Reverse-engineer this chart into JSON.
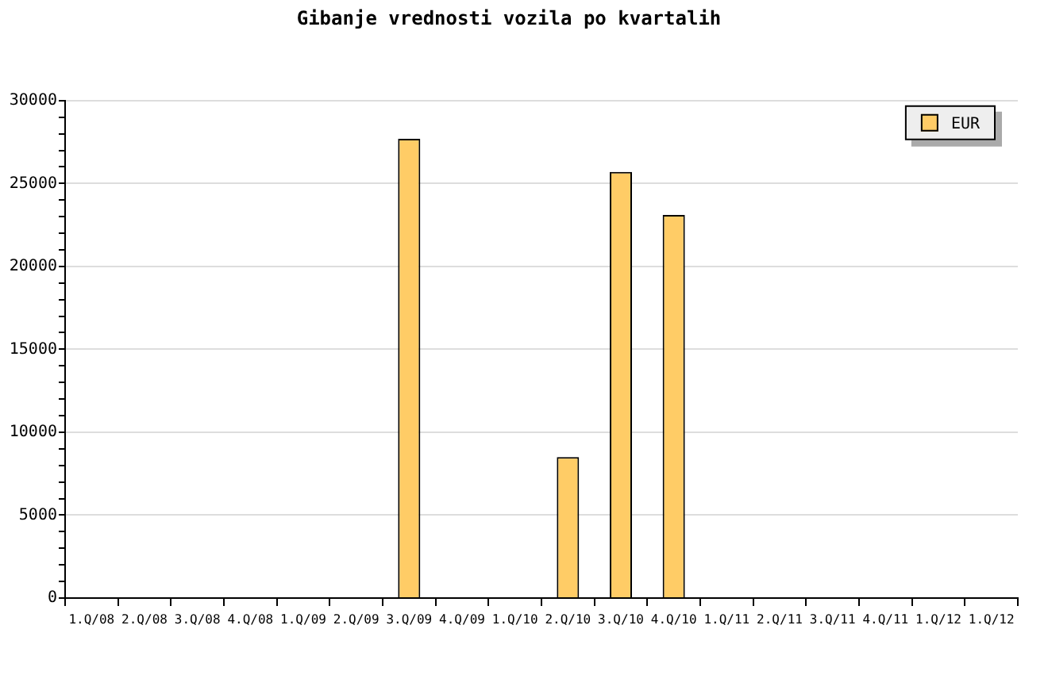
{
  "chart_data": {
    "type": "bar",
    "title": "Gibanje vrednosti vozila po kvartalih",
    "categories": [
      "1.Q/08",
      "2.Q/08",
      "3.Q/08",
      "4.Q/08",
      "1.Q/09",
      "2.Q/09",
      "3.Q/09",
      "4.Q/09",
      "1.Q/10",
      "2.Q/10",
      "3.Q/10",
      "4.Q/10",
      "1.Q/11",
      "2.Q/11",
      "3.Q/11",
      "4.Q/11",
      "1.Q/12",
      "1.Q/12"
    ],
    "series": [
      {
        "name": "EUR",
        "color": "#ffcc66",
        "values": [
          null,
          null,
          null,
          null,
          null,
          null,
          27700,
          null,
          null,
          8500,
          25700,
          23100,
          null,
          null,
          null,
          null,
          null,
          null
        ]
      }
    ],
    "ylim": [
      0,
      30000
    ],
    "yticks": [
      0,
      {
        "value": 1000,
        "label": null
      },
      {
        "value": 2000,
        "label": null
      },
      {
        "value": 3000,
        "label": null
      },
      {
        "value": 4000,
        "label": null
      },
      5000,
      {
        "value": 6000,
        "label": null
      },
      {
        "value": 7000,
        "label": null
      },
      {
        "value": 8000,
        "label": null
      },
      {
        "value": 9000,
        "label": null
      },
      10000,
      {
        "value": 11000,
        "label": null
      },
      {
        "value": 12000,
        "label": null
      },
      {
        "value": 13000,
        "label": null
      },
      {
        "value": 14000,
        "label": null
      },
      15000,
      {
        "value": 16000,
        "label": null
      },
      {
        "value": 17000,
        "label": null
      },
      {
        "value": 18000,
        "label": null
      },
      {
        "value": 19000,
        "label": null
      },
      20000,
      {
        "value": 21000,
        "label": null
      },
      {
        "value": 22000,
        "label": null
      },
      {
        "value": 23000,
        "label": null
      },
      {
        "value": 24000,
        "label": null
      },
      25000,
      {
        "value": 26000,
        "label": null
      },
      {
        "value": 27000,
        "label": null
      },
      {
        "value": 28000,
        "label": null
      },
      {
        "value": 29000,
        "label": null
      },
      30000
    ],
    "grid": "y",
    "legend": "top right"
  }
}
